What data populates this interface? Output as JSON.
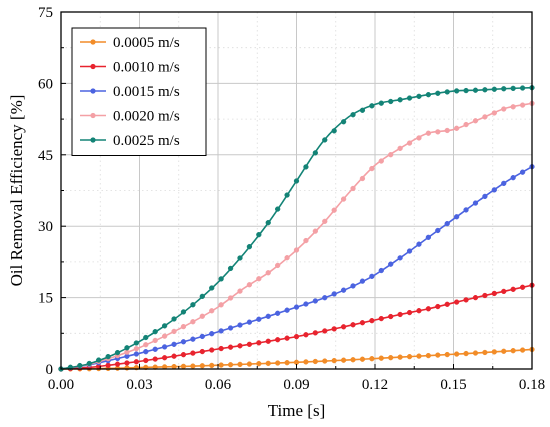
{
  "chart_data": {
    "type": "line",
    "xlabel": "Time [s]",
    "ylabel": "Oil Removal Efficiency [%]",
    "xlim": [
      0,
      0.18
    ],
    "ylim": [
      0,
      75
    ],
    "xticks": [
      0,
      0.03,
      0.06,
      0.09,
      0.12,
      0.15,
      0.18
    ],
    "yticks": [
      0,
      15,
      30,
      45,
      60,
      75
    ],
    "xtick_labels": [
      "0.00",
      "0.03",
      "0.06",
      "0.09",
      "0.12",
      "0.15",
      "0.18"
    ],
    "ytick_labels": [
      "0",
      "15",
      "30",
      "45",
      "60",
      "75"
    ],
    "grid": true,
    "legend_position": "top-left",
    "x": [
      0,
      0.01,
      0.02,
      0.03,
      0.04,
      0.05,
      0.06,
      0.07,
      0.08,
      0.09,
      0.1,
      0.11,
      0.12,
      0.13,
      0.14,
      0.15,
      0.16,
      0.17,
      0.18
    ],
    "series": [
      {
        "name": "0.0005 m/s",
        "color": "#f28c28",
        "values": [
          0,
          0.05,
          0.15,
          0.3,
          0.45,
          0.6,
          0.8,
          1.0,
          1.2,
          1.4,
          1.65,
          1.9,
          2.2,
          2.5,
          2.8,
          3.1,
          3.4,
          3.75,
          4.1
        ]
      },
      {
        "name": "0.0010 m/s",
        "color": "#e8232e",
        "values": [
          0,
          0.3,
          0.9,
          1.6,
          2.4,
          3.3,
          4.2,
          5.0,
          5.9,
          6.8,
          7.9,
          9.1,
          10.3,
          11.5,
          12.6,
          13.9,
          15.2,
          16.4,
          17.6
        ]
      },
      {
        "name": "0.0015 m/s",
        "color": "#4b63e0",
        "values": [
          0,
          0.8,
          2.0,
          3.3,
          4.7,
          6.2,
          7.8,
          9.5,
          11.2,
          13.0,
          14.8,
          17.0,
          19.8,
          23.5,
          27.5,
          31.5,
          35.5,
          39.3,
          42.5
        ]
      },
      {
        "name": "0.0020 m/s",
        "color": "#f4a0a5",
        "values": [
          0,
          0.9,
          2.5,
          4.5,
          7.0,
          9.8,
          13.0,
          17.0,
          20.5,
          25.0,
          30.5,
          37.0,
          42.8,
          46.5,
          49.5,
          50.3,
          52.5,
          54.8,
          55.8
        ]
      },
      {
        "name": "0.0025 m/s",
        "color": "#138376",
        "values": [
          0,
          1.0,
          3.0,
          5.8,
          9.2,
          13.3,
          18.2,
          24.3,
          31.3,
          39.5,
          47.7,
          53.0,
          55.6,
          56.6,
          57.6,
          58.4,
          58.6,
          58.9,
          59.1
        ]
      }
    ]
  }
}
